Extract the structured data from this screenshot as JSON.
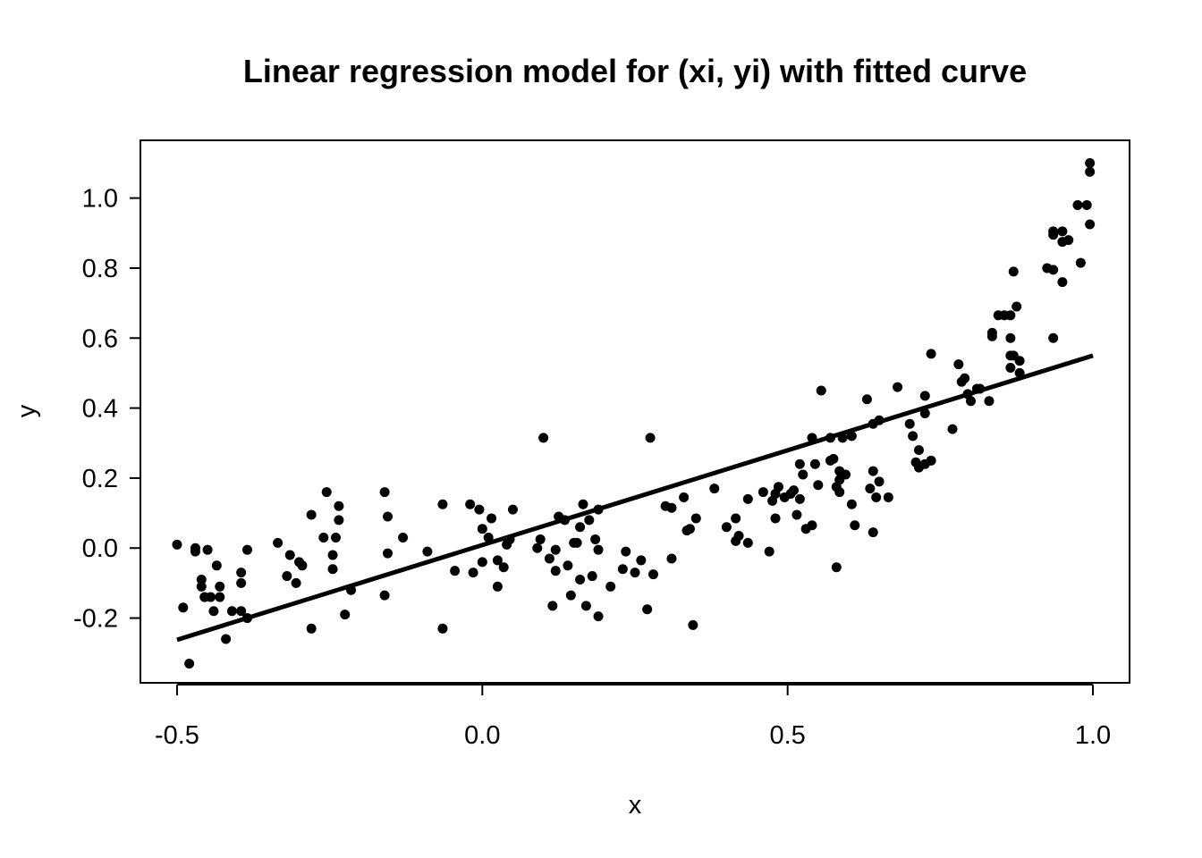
{
  "chart_data": {
    "type": "scatter",
    "title": "Linear regression model for (xi, yi) with fitted curve",
    "xlabel": "x",
    "ylabel": "y",
    "xlim": [
      -0.56,
      1.06
    ],
    "ylim": [
      -0.385,
      1.165
    ],
    "x_ticks": [
      -0.5,
      0.0,
      0.5,
      1.0
    ],
    "x_tick_labels": [
      "-0.5",
      "0.0",
      "0.5",
      "1.0"
    ],
    "y_ticks": [
      -0.2,
      0.0,
      0.2,
      0.4,
      0.6,
      0.8,
      1.0
    ],
    "y_tick_labels": [
      "-0.2",
      "0.0",
      "0.2",
      "0.4",
      "0.6",
      "0.8",
      "1.0"
    ],
    "grid": false,
    "legend": "none",
    "point_color": "#000000",
    "series": [
      {
        "type": "scatter",
        "points": [
          [
            -0.5,
            0.01
          ],
          [
            -0.49,
            -0.17
          ],
          [
            -0.48,
            -0.33
          ],
          [
            -0.47,
            -0.01
          ],
          [
            -0.47,
            0.0
          ],
          [
            -0.46,
            -0.11
          ],
          [
            -0.46,
            -0.09
          ],
          [
            -0.455,
            -0.14
          ],
          [
            -0.45,
            -0.005
          ],
          [
            -0.445,
            -0.14
          ],
          [
            -0.44,
            -0.18
          ],
          [
            -0.435,
            -0.05
          ],
          [
            -0.43,
            -0.14
          ],
          [
            -0.43,
            -0.11
          ],
          [
            -0.42,
            -0.26
          ],
          [
            -0.41,
            -0.18
          ],
          [
            -0.395,
            -0.18
          ],
          [
            -0.395,
            -0.1
          ],
          [
            -0.395,
            -0.07
          ],
          [
            -0.385,
            -0.005
          ],
          [
            -0.385,
            -0.2
          ],
          [
            -0.335,
            0.015
          ],
          [
            -0.32,
            -0.08
          ],
          [
            -0.315,
            -0.02
          ],
          [
            -0.305,
            -0.1
          ],
          [
            -0.3,
            -0.04
          ],
          [
            -0.295,
            -0.05
          ],
          [
            -0.28,
            0.095
          ],
          [
            -0.28,
            -0.23
          ],
          [
            -0.26,
            0.03
          ],
          [
            -0.255,
            0.16
          ],
          [
            -0.245,
            -0.06
          ],
          [
            -0.245,
            -0.02
          ],
          [
            -0.24,
            0.03
          ],
          [
            -0.235,
            0.12
          ],
          [
            -0.235,
            0.08
          ],
          [
            -0.225,
            -0.19
          ],
          [
            -0.215,
            -0.12
          ],
          [
            -0.16,
            0.16
          ],
          [
            -0.16,
            -0.135
          ],
          [
            -0.155,
            0.09
          ],
          [
            -0.155,
            -0.015
          ],
          [
            -0.13,
            0.03
          ],
          [
            -0.09,
            -0.01
          ],
          [
            -0.065,
            0.125
          ],
          [
            -0.065,
            -0.23
          ],
          [
            -0.045,
            -0.065
          ],
          [
            -0.02,
            0.125
          ],
          [
            -0.015,
            -0.07
          ],
          [
            -0.005,
            0.11
          ],
          [
            0.0,
            0.055
          ],
          [
            0.0,
            -0.04
          ],
          [
            0.01,
            0.03
          ],
          [
            0.015,
            0.085
          ],
          [
            0.025,
            -0.11
          ],
          [
            0.025,
            -0.035
          ],
          [
            0.035,
            -0.055
          ],
          [
            0.04,
            0.01
          ],
          [
            0.045,
            0.025
          ],
          [
            0.05,
            0.11
          ],
          [
            0.09,
            0.0
          ],
          [
            0.095,
            0.025
          ],
          [
            0.1,
            0.315
          ],
          [
            0.11,
            -0.03
          ],
          [
            0.115,
            -0.165
          ],
          [
            0.12,
            -0.065
          ],
          [
            0.12,
            -0.005
          ],
          [
            0.125,
            0.09
          ],
          [
            0.135,
            0.08
          ],
          [
            0.14,
            -0.05
          ],
          [
            0.145,
            -0.135
          ],
          [
            0.15,
            0.015
          ],
          [
            0.155,
            0.015
          ],
          [
            0.16,
            -0.09
          ],
          [
            0.16,
            0.06
          ],
          [
            0.165,
            0.125
          ],
          [
            0.17,
            -0.165
          ],
          [
            0.175,
            0.08
          ],
          [
            0.18,
            -0.08
          ],
          [
            0.185,
            0.025
          ],
          [
            0.19,
            0.11
          ],
          [
            0.19,
            -0.005
          ],
          [
            0.19,
            -0.195
          ],
          [
            0.21,
            -0.11
          ],
          [
            0.23,
            -0.06
          ],
          [
            0.235,
            -0.01
          ],
          [
            0.25,
            -0.07
          ],
          [
            0.26,
            -0.035
          ],
          [
            0.27,
            -0.175
          ],
          [
            0.275,
            0.315
          ],
          [
            0.28,
            -0.075
          ],
          [
            0.3,
            0.12
          ],
          [
            0.31,
            0.115
          ],
          [
            0.31,
            -0.03
          ],
          [
            0.33,
            0.145
          ],
          [
            0.335,
            0.05
          ],
          [
            0.34,
            0.055
          ],
          [
            0.345,
            -0.22
          ],
          [
            0.35,
            0.085
          ],
          [
            0.38,
            0.17
          ],
          [
            0.4,
            0.06
          ],
          [
            0.415,
            0.085
          ],
          [
            0.415,
            0.02
          ],
          [
            0.42,
            0.035
          ],
          [
            0.435,
            0.14
          ],
          [
            0.435,
            0.015
          ],
          [
            0.46,
            0.16
          ],
          [
            0.47,
            -0.01
          ],
          [
            0.475,
            0.135
          ],
          [
            0.48,
            0.155
          ],
          [
            0.48,
            0.085
          ],
          [
            0.485,
            0.175
          ],
          [
            0.495,
            0.145
          ],
          [
            0.505,
            0.155
          ],
          [
            0.51,
            0.165
          ],
          [
            0.515,
            0.095
          ],
          [
            0.52,
            0.24
          ],
          [
            0.52,
            0.14
          ],
          [
            0.525,
            0.21
          ],
          [
            0.53,
            0.055
          ],
          [
            0.54,
            0.315
          ],
          [
            0.54,
            0.065
          ],
          [
            0.545,
            0.24
          ],
          [
            0.55,
            0.18
          ],
          [
            0.555,
            0.45
          ],
          [
            0.57,
            0.315
          ],
          [
            0.57,
            0.25
          ],
          [
            0.575,
            0.255
          ],
          [
            0.58,
            0.175
          ],
          [
            0.58,
            -0.055
          ],
          [
            0.585,
            0.195
          ],
          [
            0.585,
            0.16
          ],
          [
            0.585,
            0.22
          ],
          [
            0.59,
            0.315
          ],
          [
            0.595,
            0.21
          ],
          [
            0.605,
            0.32
          ],
          [
            0.605,
            0.125
          ],
          [
            0.61,
            0.065
          ],
          [
            0.63,
            0.425
          ],
          [
            0.635,
            0.17
          ],
          [
            0.64,
            0.355
          ],
          [
            0.64,
            0.22
          ],
          [
            0.64,
            0.045
          ],
          [
            0.645,
            0.145
          ],
          [
            0.65,
            0.365
          ],
          [
            0.65,
            0.19
          ],
          [
            0.665,
            0.145
          ],
          [
            0.68,
            0.46
          ],
          [
            0.7,
            0.355
          ],
          [
            0.705,
            0.32
          ],
          [
            0.71,
            0.245
          ],
          [
            0.715,
            0.28
          ],
          [
            0.715,
            0.23
          ],
          [
            0.725,
            0.385
          ],
          [
            0.725,
            0.435
          ],
          [
            0.725,
            0.24
          ],
          [
            0.735,
            0.555
          ],
          [
            0.735,
            0.25
          ],
          [
            0.77,
            0.34
          ],
          [
            0.78,
            0.525
          ],
          [
            0.785,
            0.475
          ],
          [
            0.79,
            0.485
          ],
          [
            0.795,
            0.44
          ],
          [
            0.8,
            0.42
          ],
          [
            0.81,
            0.455
          ],
          [
            0.815,
            0.455
          ],
          [
            0.83,
            0.42
          ],
          [
            0.835,
            0.615
          ],
          [
            0.835,
            0.605
          ],
          [
            0.845,
            0.665
          ],
          [
            0.855,
            0.665
          ],
          [
            0.865,
            0.515
          ],
          [
            0.865,
            0.55
          ],
          [
            0.865,
            0.665
          ],
          [
            0.865,
            0.6
          ],
          [
            0.87,
            0.79
          ],
          [
            0.87,
            0.55
          ],
          [
            0.875,
            0.69
          ],
          [
            0.88,
            0.535
          ],
          [
            0.88,
            0.5
          ],
          [
            0.925,
            0.8
          ],
          [
            0.935,
            0.895
          ],
          [
            0.935,
            0.795
          ],
          [
            0.935,
            0.6
          ],
          [
            0.935,
            0.905
          ],
          [
            0.95,
            0.875
          ],
          [
            0.95,
            0.76
          ],
          [
            0.95,
            0.905
          ],
          [
            0.96,
            0.88
          ],
          [
            0.975,
            0.98
          ],
          [
            0.98,
            0.815
          ],
          [
            0.99,
            0.98
          ],
          [
            0.995,
            0.925
          ],
          [
            0.995,
            1.075
          ],
          [
            0.995,
            1.1
          ]
        ]
      },
      {
        "type": "line",
        "x": [
          -0.5,
          1.0
        ],
        "y": [
          -0.262,
          0.55
        ]
      }
    ]
  }
}
